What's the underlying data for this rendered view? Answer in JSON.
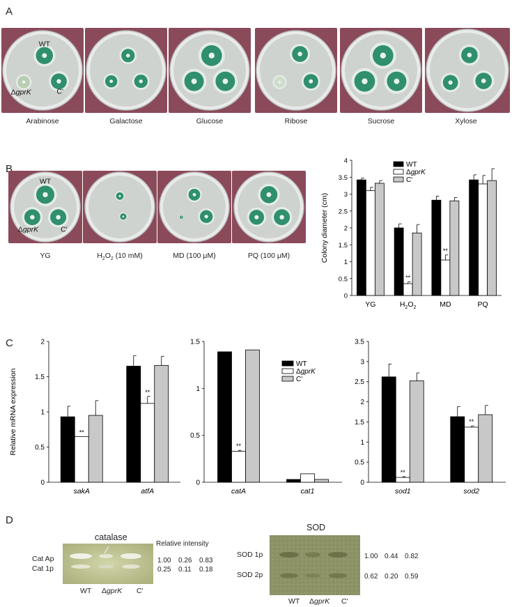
{
  "panels": {
    "a": "A",
    "b": "B",
    "c": "C",
    "d": "D"
  },
  "panel_a": {
    "plates": [
      "Arabinose",
      "Galactose",
      "Glucose",
      "Ribose",
      "Sucrose",
      "Xylose"
    ],
    "strain_labels": {
      "wt": "WT",
      "mutant_prefix": "Δ",
      "mutant_gene": "gprK",
      "comp": "C'"
    }
  },
  "panel_b": {
    "plates": [
      "YG",
      "H2O2 (10 mM)",
      "MD (100 μM)",
      "PQ (100 μM)"
    ],
    "plate_caption_parts": {
      "h2o2_pre": "H",
      "h2o2_sub1": "2",
      "h2o2_mid": "O",
      "h2o2_sub2": "2",
      "h2o2_post": " (10 mM)"
    },
    "strain_labels": {
      "wt": "WT",
      "mutant_prefix": "Δ",
      "mutant_gene": "gprK",
      "comp": "C'"
    }
  },
  "colors": {
    "wt": "#000000",
    "mutant": "#ffffff",
    "comp": "#c8c8c8",
    "axis": "#000000",
    "plate_bg": "#8a4a5a",
    "agar": "#cfd3d0",
    "colony": "#2f8f6e",
    "gel_green": "#b5bb8a",
    "gel_sod": "#8b9163"
  },
  "chart_data": [
    {
      "id": "b-colony",
      "type": "bar",
      "ylabel": "Colony diameter (cm)",
      "xlabel": "",
      "ylim": [
        0,
        4
      ],
      "yticks": [
        "0",
        "0.5",
        "1",
        "1.5",
        "2",
        "2.5",
        "3",
        "3.5",
        "4"
      ],
      "categories": [
        "YG",
        "H2O2",
        "MD",
        "PQ"
      ],
      "series": [
        {
          "name": "WT",
          "values": [
            3.42,
            2.0,
            2.82,
            3.42
          ],
          "err": [
            0.05,
            0.12,
            0.12,
            0.15
          ]
        },
        {
          "name": "ΔgprK",
          "values": [
            3.1,
            0.35,
            1.05,
            3.3
          ],
          "err": [
            0.1,
            0.05,
            0.15,
            0.25
          ]
        },
        {
          "name": "C'",
          "values": [
            3.32,
            1.85,
            2.8,
            3.4
          ],
          "err": [
            0.08,
            0.25,
            0.1,
            0.35
          ]
        }
      ],
      "annotations": [
        {
          "category": "H2O2",
          "series": 1,
          "text": "**"
        },
        {
          "category": "MD",
          "series": 1,
          "text": "**"
        }
      ],
      "legend": "top-right"
    },
    {
      "id": "c1",
      "type": "bar",
      "ylabel": "Relative mRNA expression",
      "ylim": [
        0,
        2
      ],
      "yticks": [
        "0",
        "0.5",
        "1",
        "1.5",
        "2"
      ],
      "categories": [
        "sakA",
        "atfA"
      ],
      "series": [
        {
          "name": "WT",
          "values": [
            0.93,
            1.65
          ],
          "err": [
            0.15,
            0.15
          ]
        },
        {
          "name": "ΔgprK",
          "values": [
            0.65,
            1.12
          ],
          "err": [
            0.0,
            0.1
          ]
        },
        {
          "name": "C'",
          "values": [
            0.95,
            1.66
          ],
          "err": [
            0.21,
            0.13
          ]
        }
      ],
      "annotations": [
        {
          "category": "sakA",
          "series": 1,
          "text": "**"
        },
        {
          "category": "atfA",
          "series": 1,
          "text": "**"
        }
      ]
    },
    {
      "id": "c2",
      "type": "bar",
      "ylim": [
        0,
        1.5
      ],
      "yticks": [
        "0",
        "0.5",
        "1",
        "1.5"
      ],
      "categories": [
        "catA",
        "cat1"
      ],
      "series": [
        {
          "name": "WT",
          "values": [
            1.39,
            0.03
          ],
          "err": [
            0,
            0
          ]
        },
        {
          "name": "ΔgprK",
          "values": [
            0.33,
            0.09
          ],
          "err": [
            0.01,
            0
          ]
        },
        {
          "name": "C'",
          "values": [
            1.41,
            0.03
          ],
          "err": [
            0,
            0
          ]
        }
      ],
      "annotations": [
        {
          "category": "catA",
          "series": 1,
          "text": "**"
        }
      ],
      "legend": "top-right"
    },
    {
      "id": "c3",
      "type": "bar",
      "ylim": [
        0,
        3.5
      ],
      "yticks": [
        "0",
        "0.5",
        "1",
        "1.5",
        "2",
        "2.5",
        "3",
        "3.5"
      ],
      "categories": [
        "sod1",
        "sod2"
      ],
      "series": [
        {
          "name": "WT",
          "values": [
            2.62,
            1.63
          ],
          "err": [
            0.32,
            0.25
          ]
        },
        {
          "name": "ΔgprK",
          "values": [
            0.12,
            1.37
          ],
          "err": [
            0.02,
            0.03
          ]
        },
        {
          "name": "C'",
          "values": [
            2.52,
            1.68
          ],
          "err": [
            0.2,
            0.23
          ]
        }
      ],
      "annotations": [
        {
          "category": "sod1",
          "series": 1,
          "text": "**"
        },
        {
          "category": "sod2",
          "series": 1,
          "text": "**"
        }
      ]
    }
  ],
  "panel_d": {
    "catalase": {
      "title": "catalase",
      "header": "Relative intensity",
      "bands": [
        "Cat Ap",
        "Cat 1p"
      ],
      "values": [
        [
          "1.00",
          "0.26",
          "0.83"
        ],
        [
          "0.25",
          "0.11",
          "0.18"
        ]
      ],
      "lanes": [
        "WT",
        "ΔgprK",
        "C'"
      ]
    },
    "sod": {
      "title": "SOD",
      "bands": [
        "SOD 1p",
        "SOD 2p"
      ],
      "values": [
        [
          "1.00",
          "0.44",
          "0.82"
        ],
        [
          "0.62",
          "0.20",
          "0.59"
        ]
      ],
      "lanes": [
        "WT",
        "ΔgprK",
        "C'"
      ]
    }
  }
}
